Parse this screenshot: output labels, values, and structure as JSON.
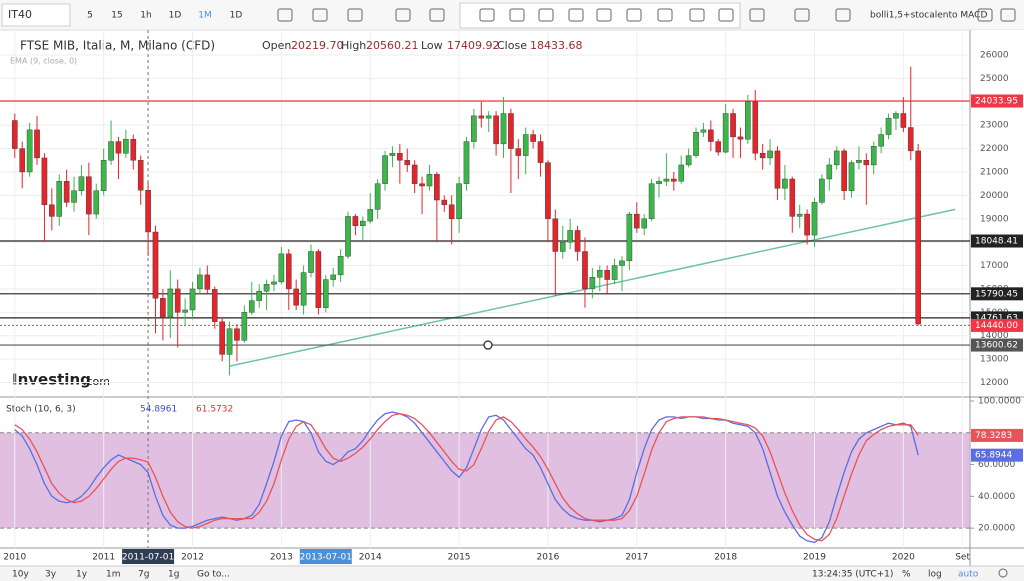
{
  "toolbar": {
    "symbol": "IT40",
    "intervals": [
      "5",
      "15",
      "1h",
      "1D",
      "1M",
      "1D"
    ],
    "template": "bolli1,5+stocalento MACD"
  },
  "logo": {
    "brand": "Investing",
    "suffix": ".com"
  },
  "bottom_bar": {
    "ranges": [
      "10y",
      "3y",
      "1y",
      "1m",
      "7g",
      "1g"
    ],
    "goto": "Go to...",
    "time": "13:24:35 (UTC+1)",
    "options": [
      "%",
      "log",
      "auto"
    ]
  },
  "chart_data": [
    {
      "type": "candlestick",
      "title": "FTSE MIB, Italia, M, Milano (CFD)",
      "indicator": "EMA (9, close, 0)",
      "ohlc_legend": {
        "labels": [
          "Open",
          "High",
          "Low",
          "Close"
        ],
        "values": [
          "20219.70",
          "20560.21",
          "17409.92",
          "18433.68"
        ]
      },
      "x": [
        "2010-01",
        "2010-02",
        "2010-03",
        "2010-04",
        "2010-05",
        "2010-06",
        "2010-07",
        "2010-08",
        "2010-09",
        "2010-10",
        "2010-11",
        "2010-12",
        "2011-01",
        "2011-02",
        "2011-03",
        "2011-04",
        "2011-05",
        "2011-06",
        "2011-07",
        "2011-08",
        "2011-09",
        "2011-10",
        "2011-11",
        "2011-12",
        "2012-01",
        "2012-02",
        "2012-03",
        "2012-04",
        "2012-05",
        "2012-06",
        "2012-07",
        "2012-08",
        "2012-09",
        "2012-10",
        "2012-11",
        "2012-12",
        "2013-01",
        "2013-02",
        "2013-03",
        "2013-04",
        "2013-05",
        "2013-06",
        "2013-07",
        "2013-08",
        "2013-09",
        "2013-10",
        "2013-11",
        "2013-12",
        "2014-01",
        "2014-02",
        "2014-03",
        "2014-04",
        "2014-05",
        "2014-06",
        "2014-07",
        "2014-08",
        "2014-09",
        "2014-10",
        "2014-11",
        "2014-12",
        "2015-01",
        "2015-02",
        "2015-03",
        "2015-04",
        "2015-05",
        "2015-06",
        "2015-07",
        "2015-08",
        "2015-09",
        "2015-10",
        "2015-11",
        "2015-12",
        "2016-01",
        "2016-02",
        "2016-03",
        "2016-04",
        "2016-05",
        "2016-06",
        "2016-07",
        "2016-08",
        "2016-09",
        "2016-10",
        "2016-11",
        "2016-12",
        "2017-01",
        "2017-02",
        "2017-03",
        "2017-04",
        "2017-05",
        "2017-06",
        "2017-07",
        "2017-08",
        "2017-09",
        "2017-10",
        "2017-11",
        "2017-12",
        "2018-01",
        "2018-02",
        "2018-03",
        "2018-04",
        "2018-05",
        "2018-06",
        "2018-07",
        "2018-08",
        "2018-09",
        "2018-10",
        "2018-11",
        "2018-12",
        "2019-01",
        "2019-02",
        "2019-03",
        "2019-04",
        "2019-05",
        "2019-06",
        "2019-07",
        "2019-08",
        "2019-09",
        "2019-10",
        "2019-11",
        "2019-12",
        "2020-01",
        "2020-02",
        "2020-03"
      ],
      "open": [
        23200,
        22000,
        21000,
        22800,
        21600,
        19600,
        19100,
        20600,
        19700,
        20200,
        20800,
        19200,
        20200,
        21500,
        22300,
        21800,
        22400,
        21500,
        20219.7,
        18433.68,
        15600,
        14800,
        16000,
        15000,
        15100,
        16000,
        16600,
        15980,
        14600,
        13200,
        14300,
        13800,
        15000,
        15500,
        15900,
        16200,
        16300,
        17500,
        16000,
        15300,
        16700,
        17600,
        15200,
        16400,
        16600,
        17400,
        19100,
        18700,
        18900,
        19400,
        20500,
        21700,
        21800,
        21500,
        21300,
        20500,
        20400,
        20900,
        19800,
        19600,
        19000,
        20500,
        22300,
        23400,
        23300,
        23400,
        22200,
        23500,
        22000,
        21700,
        22600,
        22300,
        21400,
        19000,
        17600,
        18000,
        18500,
        17600,
        16000,
        16500,
        16800,
        16400,
        17000,
        17200,
        19200,
        18600,
        19000,
        20500,
        20600,
        20700,
        20600,
        21300,
        21700,
        22700,
        22800,
        22300,
        21850,
        23500,
        22500,
        22400,
        24000,
        21800,
        21600,
        21900,
        20300,
        20700,
        19100,
        19200,
        18300,
        19700,
        20700,
        21300,
        21900,
        20200,
        21400,
        21500,
        21300,
        22100,
        22600,
        23300,
        23500,
        22900,
        21900
      ],
      "high": [
        23500,
        22300,
        23100,
        23400,
        21800,
        20300,
        20900,
        21100,
        20800,
        21300,
        21400,
        20500,
        22000,
        23200,
        22500,
        22800,
        22600,
        21700,
        20560.21,
        18700,
        16000,
        16800,
        16400,
        15600,
        16300,
        16900,
        17000,
        16100,
        14800,
        14600,
        14500,
        15300,
        16300,
        16200,
        16400,
        16600,
        17800,
        17700,
        16400,
        17000,
        17900,
        17700,
        16600,
        16900,
        17700,
        19300,
        19200,
        19100,
        20100,
        20700,
        21900,
        22100,
        22200,
        22000,
        21500,
        20800,
        21300,
        21000,
        20000,
        20000,
        20800,
        22500,
        23700,
        24000,
        23600,
        23600,
        24200,
        23700,
        22400,
        22900,
        22800,
        22600,
        21500,
        19400,
        18700,
        19000,
        18700,
        18200,
        16900,
        17000,
        17000,
        17300,
        17400,
        19300,
        19700,
        19200,
        20700,
        20800,
        21800,
        21000,
        21700,
        22000,
        22900,
        23100,
        23200,
        22400,
        23900,
        23700,
        22900,
        24300,
        24500,
        22200,
        22400,
        22100,
        21300,
        20800,
        19600,
        19400,
        19900,
        20900,
        21600,
        22100,
        22000,
        21500,
        22100,
        21800,
        22300,
        22900,
        23500,
        23600,
        24200,
        25500,
        22200
      ],
      "low": [
        21600,
        20300,
        20800,
        21300,
        18000,
        18500,
        18700,
        19500,
        19300,
        20000,
        18300,
        19000,
        20000,
        21300,
        20700,
        21600,
        21100,
        19600,
        17409.92,
        14100,
        13800,
        13900,
        13500,
        14400,
        14700,
        15800,
        15800,
        14300,
        12900,
        12300,
        12900,
        13700,
        14900,
        15200,
        15100,
        15900,
        16200,
        15100,
        15100,
        14900,
        16500,
        14900,
        15000,
        16100,
        16300,
        17300,
        18300,
        18100,
        18800,
        19000,
        20200,
        21200,
        20500,
        21000,
        20100,
        19200,
        20200,
        18000,
        19300,
        17900,
        18400,
        20200,
        22000,
        22900,
        22700,
        21700,
        21600,
        20100,
        20700,
        20900,
        22000,
        20800,
        18000,
        15700,
        17300,
        17700,
        17200,
        15200,
        15600,
        15900,
        15800,
        16200,
        15900,
        16800,
        18400,
        18300,
        18900,
        19900,
        20400,
        20200,
        20500,
        21200,
        21600,
        22500,
        21900,
        21700,
        21800,
        21600,
        21600,
        22200,
        21500,
        21100,
        21300,
        19800,
        19800,
        18400,
        18600,
        17900,
        17800,
        19600,
        20200,
        21100,
        19800,
        19900,
        21100,
        19600,
        20900,
        21800,
        22400,
        22800,
        22700,
        21500,
        14440
      ],
      "close": [
        22000,
        21000,
        22800,
        21600,
        19600,
        19100,
        20600,
        19700,
        20200,
        20800,
        19200,
        20200,
        21500,
        22300,
        21800,
        22400,
        21500,
        20219.7,
        18433.68,
        15600,
        14800,
        16000,
        15000,
        15100,
        16000,
        16600,
        15980,
        14600,
        13200,
        14300,
        13800,
        15000,
        15500,
        15900,
        16200,
        16300,
        17500,
        16000,
        15300,
        16700,
        17600,
        15200,
        16400,
        16600,
        17400,
        19100,
        18700,
        18900,
        19400,
        20500,
        21700,
        21800,
        21500,
        21300,
        20500,
        20400,
        20900,
        19800,
        19600,
        19000,
        20500,
        22300,
        23400,
        23300,
        23400,
        22200,
        23500,
        22000,
        21700,
        22600,
        22300,
        21400,
        19000,
        17600,
        18000,
        18500,
        17600,
        16000,
        16500,
        16800,
        16400,
        17000,
        17200,
        19200,
        18600,
        19000,
        20500,
        20600,
        20700,
        20600,
        21300,
        21700,
        22700,
        22800,
        22300,
        21850,
        23500,
        22500,
        22400,
        24000,
        21800,
        21600,
        21900,
        20300,
        20700,
        19100,
        19200,
        18300,
        19700,
        20700,
        21300,
        21900,
        20200,
        21400,
        21500,
        21300,
        22100,
        22600,
        23300,
        23500,
        22900,
        21900,
        14500
      ],
      "up_color": "#3cb54a",
      "down_color": "#e3262c",
      "xlim": [
        "2009-11",
        "2020-10"
      ],
      "xticks": [
        {
          "value": "2010-01",
          "label": "2010"
        },
        {
          "value": "2011-01",
          "label": "2011"
        },
        {
          "value": "2012-01",
          "label": "2012"
        },
        {
          "value": "2013-01",
          "label": "2013"
        },
        {
          "value": "2014-01",
          "label": "2014"
        },
        {
          "value": "2015-01",
          "label": "2015"
        },
        {
          "value": "2016-01",
          "label": "2016"
        },
        {
          "value": "2017-01",
          "label": "2017"
        },
        {
          "value": "2018-01",
          "label": "2018"
        },
        {
          "value": "2019-01",
          "label": "2019"
        },
        {
          "value": "2020-01",
          "label": "2020"
        },
        {
          "value": "2020-09",
          "label": "Set"
        }
      ],
      "x_highlights": [
        "2011-07-01",
        "2013-07-01"
      ],
      "ylim": [
        11380,
        27240
      ],
      "yticks": [
        12000,
        13000,
        14000,
        15000,
        16000,
        17000,
        18000,
        19000,
        20000,
        21000,
        22000,
        23000,
        24000,
        25000,
        26000
      ],
      "grid": true,
      "levels": {
        "values": [
          24033.95,
          18048.41,
          15790.45,
          14761.63,
          {
            "value": 14440,
            "label": "14440.00"
          },
          13600.62
        ],
        "colors": [
          "#f23645",
          "#222222",
          "#222222",
          "#222222",
          "#f23645",
          "#555555"
        ],
        "styles": [
          "solid",
          "solid",
          "solid",
          "solid",
          "dotted",
          "solid"
        ]
      },
      "trendline": {
        "x": [
          "2012-06",
          "2020-08"
        ],
        "y": [
          12700,
          19400
        ],
        "color": "#6cc4a4"
      }
    },
    {
      "type": "line",
      "title": "Stoch (10, 6, 3)",
      "series": [
        {
          "color": "#5b6ee1",
          "values": [
            82,
            78,
            70,
            60,
            48,
            40,
            37,
            36,
            37,
            40,
            45,
            52,
            58,
            63,
            66,
            64,
            62,
            60,
            54.8961,
            40,
            28,
            22,
            20,
            20,
            21,
            23,
            25,
            26,
            27,
            26,
            25,
            26,
            28,
            35,
            48,
            62,
            78,
            87,
            88,
            87,
            80,
            68,
            62,
            60,
            63,
            68,
            70,
            75,
            82,
            88,
            92,
            93,
            92,
            90,
            86,
            80,
            74,
            68,
            62,
            56,
            52,
            58,
            70,
            82,
            90,
            91,
            88,
            82,
            76,
            70,
            66,
            58,
            48,
            38,
            32,
            28,
            26,
            25,
            25,
            24,
            25,
            26,
            28,
            38,
            55,
            70,
            82,
            88,
            90,
            90,
            89,
            90,
            90,
            89,
            89,
            88,
            88,
            86,
            85,
            84,
            80,
            70,
            55,
            40,
            30,
            22,
            15,
            12,
            11,
            14,
            24,
            40,
            55,
            68,
            76,
            80,
            82,
            84,
            86,
            85,
            86,
            84,
            65.8944
          ]
        },
        {
          "color": "#e8535a",
          "values": [
            85,
            82,
            76,
            68,
            58,
            48,
            42,
            38,
            36,
            37,
            40,
            45,
            51,
            57,
            62,
            64,
            64,
            63,
            61.5732,
            52,
            40,
            30,
            24,
            21,
            20,
            21,
            23,
            25,
            26,
            26,
            26,
            26,
            26,
            30,
            37,
            48,
            63,
            76,
            84,
            87,
            85,
            78,
            70,
            64,
            62,
            64,
            67,
            71,
            76,
            82,
            87,
            91,
            92,
            91,
            89,
            85,
            80,
            74,
            68,
            62,
            57,
            56,
            60,
            70,
            81,
            88,
            90,
            87,
            82,
            76,
            71,
            65,
            57,
            48,
            39,
            33,
            29,
            26,
            25,
            25,
            25,
            25,
            26,
            31,
            40,
            54,
            69,
            80,
            87,
            89,
            90,
            90,
            90,
            90,
            89,
            89,
            88,
            87,
            86,
            85,
            83,
            78,
            68,
            55,
            42,
            31,
            22,
            16,
            13,
            12,
            16,
            26,
            40,
            54,
            66,
            75,
            79,
            82,
            84,
            85,
            85,
            85,
            78.3283
          ]
        }
      ],
      "ylim": [
        7.5,
        102.5
      ],
      "yticks": [
        {
          "value": 20,
          "label": "20.0000"
        },
        {
          "value": 40,
          "label": "40.0000"
        },
        {
          "value": 60,
          "label": "60.0000"
        },
        {
          "value": 80,
          "label": "80.0000"
        },
        {
          "value": 100,
          "label": "100.0000"
        }
      ],
      "band": [
        20,
        80
      ],
      "band_color": "#d7a9d7"
    }
  ]
}
